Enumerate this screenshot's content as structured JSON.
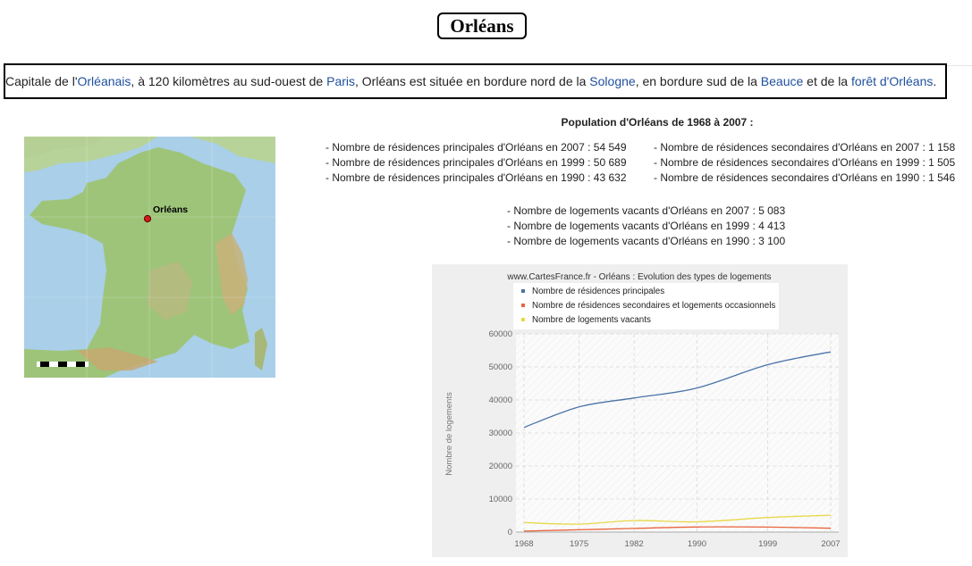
{
  "title": "Orléans",
  "intro": {
    "t1": "Capitale de l'",
    "l1": "Orléanais",
    "t2": ", à 120 kilomètres au sud-ouest de ",
    "l2": "Paris",
    "t3": ", Orléans est située en bordure nord de la ",
    "l3": "Sologne",
    "t4": ", en bordure sud de la ",
    "l4": "Beauce",
    "t5": " et de la ",
    "l5": "forêt d'Orléans",
    "t6": "."
  },
  "map": {
    "city_label": "Orléans",
    "colors": {
      "sea": "#a9cfe9",
      "land": "#9ec47a",
      "marker": "#d11a1a"
    }
  },
  "population": {
    "title": "Population d'Orléans de 1968 à 2007 :",
    "principales": [
      "- Nombre de résidences principales d'Orléans en 2007 : 54 549",
      "- Nombre de résidences principales d'Orléans en 1999 : 50 689",
      "- Nombre de résidences principales d'Orléans en 1990 : 43 632"
    ],
    "secondaires": [
      "- Nombre de résidences secondaires d'Orléans en 2007 : 1 158",
      "- Nombre de résidences secondaires d'Orléans en 1999 : 1 505",
      "- Nombre de résidences secondaires d'Orléans en 1990 : 1 546"
    ],
    "vacants": [
      "- Nombre de logements vacants d'Orléans en 2007 : 5 083",
      "- Nombre de logements vacants d'Orléans en 1999 : 4 413",
      "- Nombre de logements vacants d'Orléans en 1990 : 3 100"
    ]
  },
  "chart_data": {
    "type": "line",
    "title": "www.CartesFrance.fr - Orléans : Evolution des types de logements",
    "ylabel": "Nombre de logements",
    "xlabel": "",
    "x": [
      1968,
      1975,
      1982,
      1990,
      1999,
      2007
    ],
    "ylim": [
      0,
      60000
    ],
    "yticks": [
      0,
      10000,
      20000,
      30000,
      40000,
      50000,
      60000
    ],
    "grid": true,
    "legend": "top",
    "series": [
      {
        "name": "Nombre de résidences principales",
        "color": "#4a74a8",
        "values": [
          31700,
          37900,
          40600,
          43632,
          50689,
          54549
        ]
      },
      {
        "name": "Nombre de résidences secondaires et logements occasionnels",
        "color": "#e8643c",
        "values": [
          300,
          700,
          1100,
          1546,
          1505,
          1158
        ]
      },
      {
        "name": "Nombre de logements vacants",
        "color": "#e8d84a",
        "values": [
          2900,
          2400,
          3500,
          3100,
          4413,
          5083
        ]
      }
    ]
  }
}
